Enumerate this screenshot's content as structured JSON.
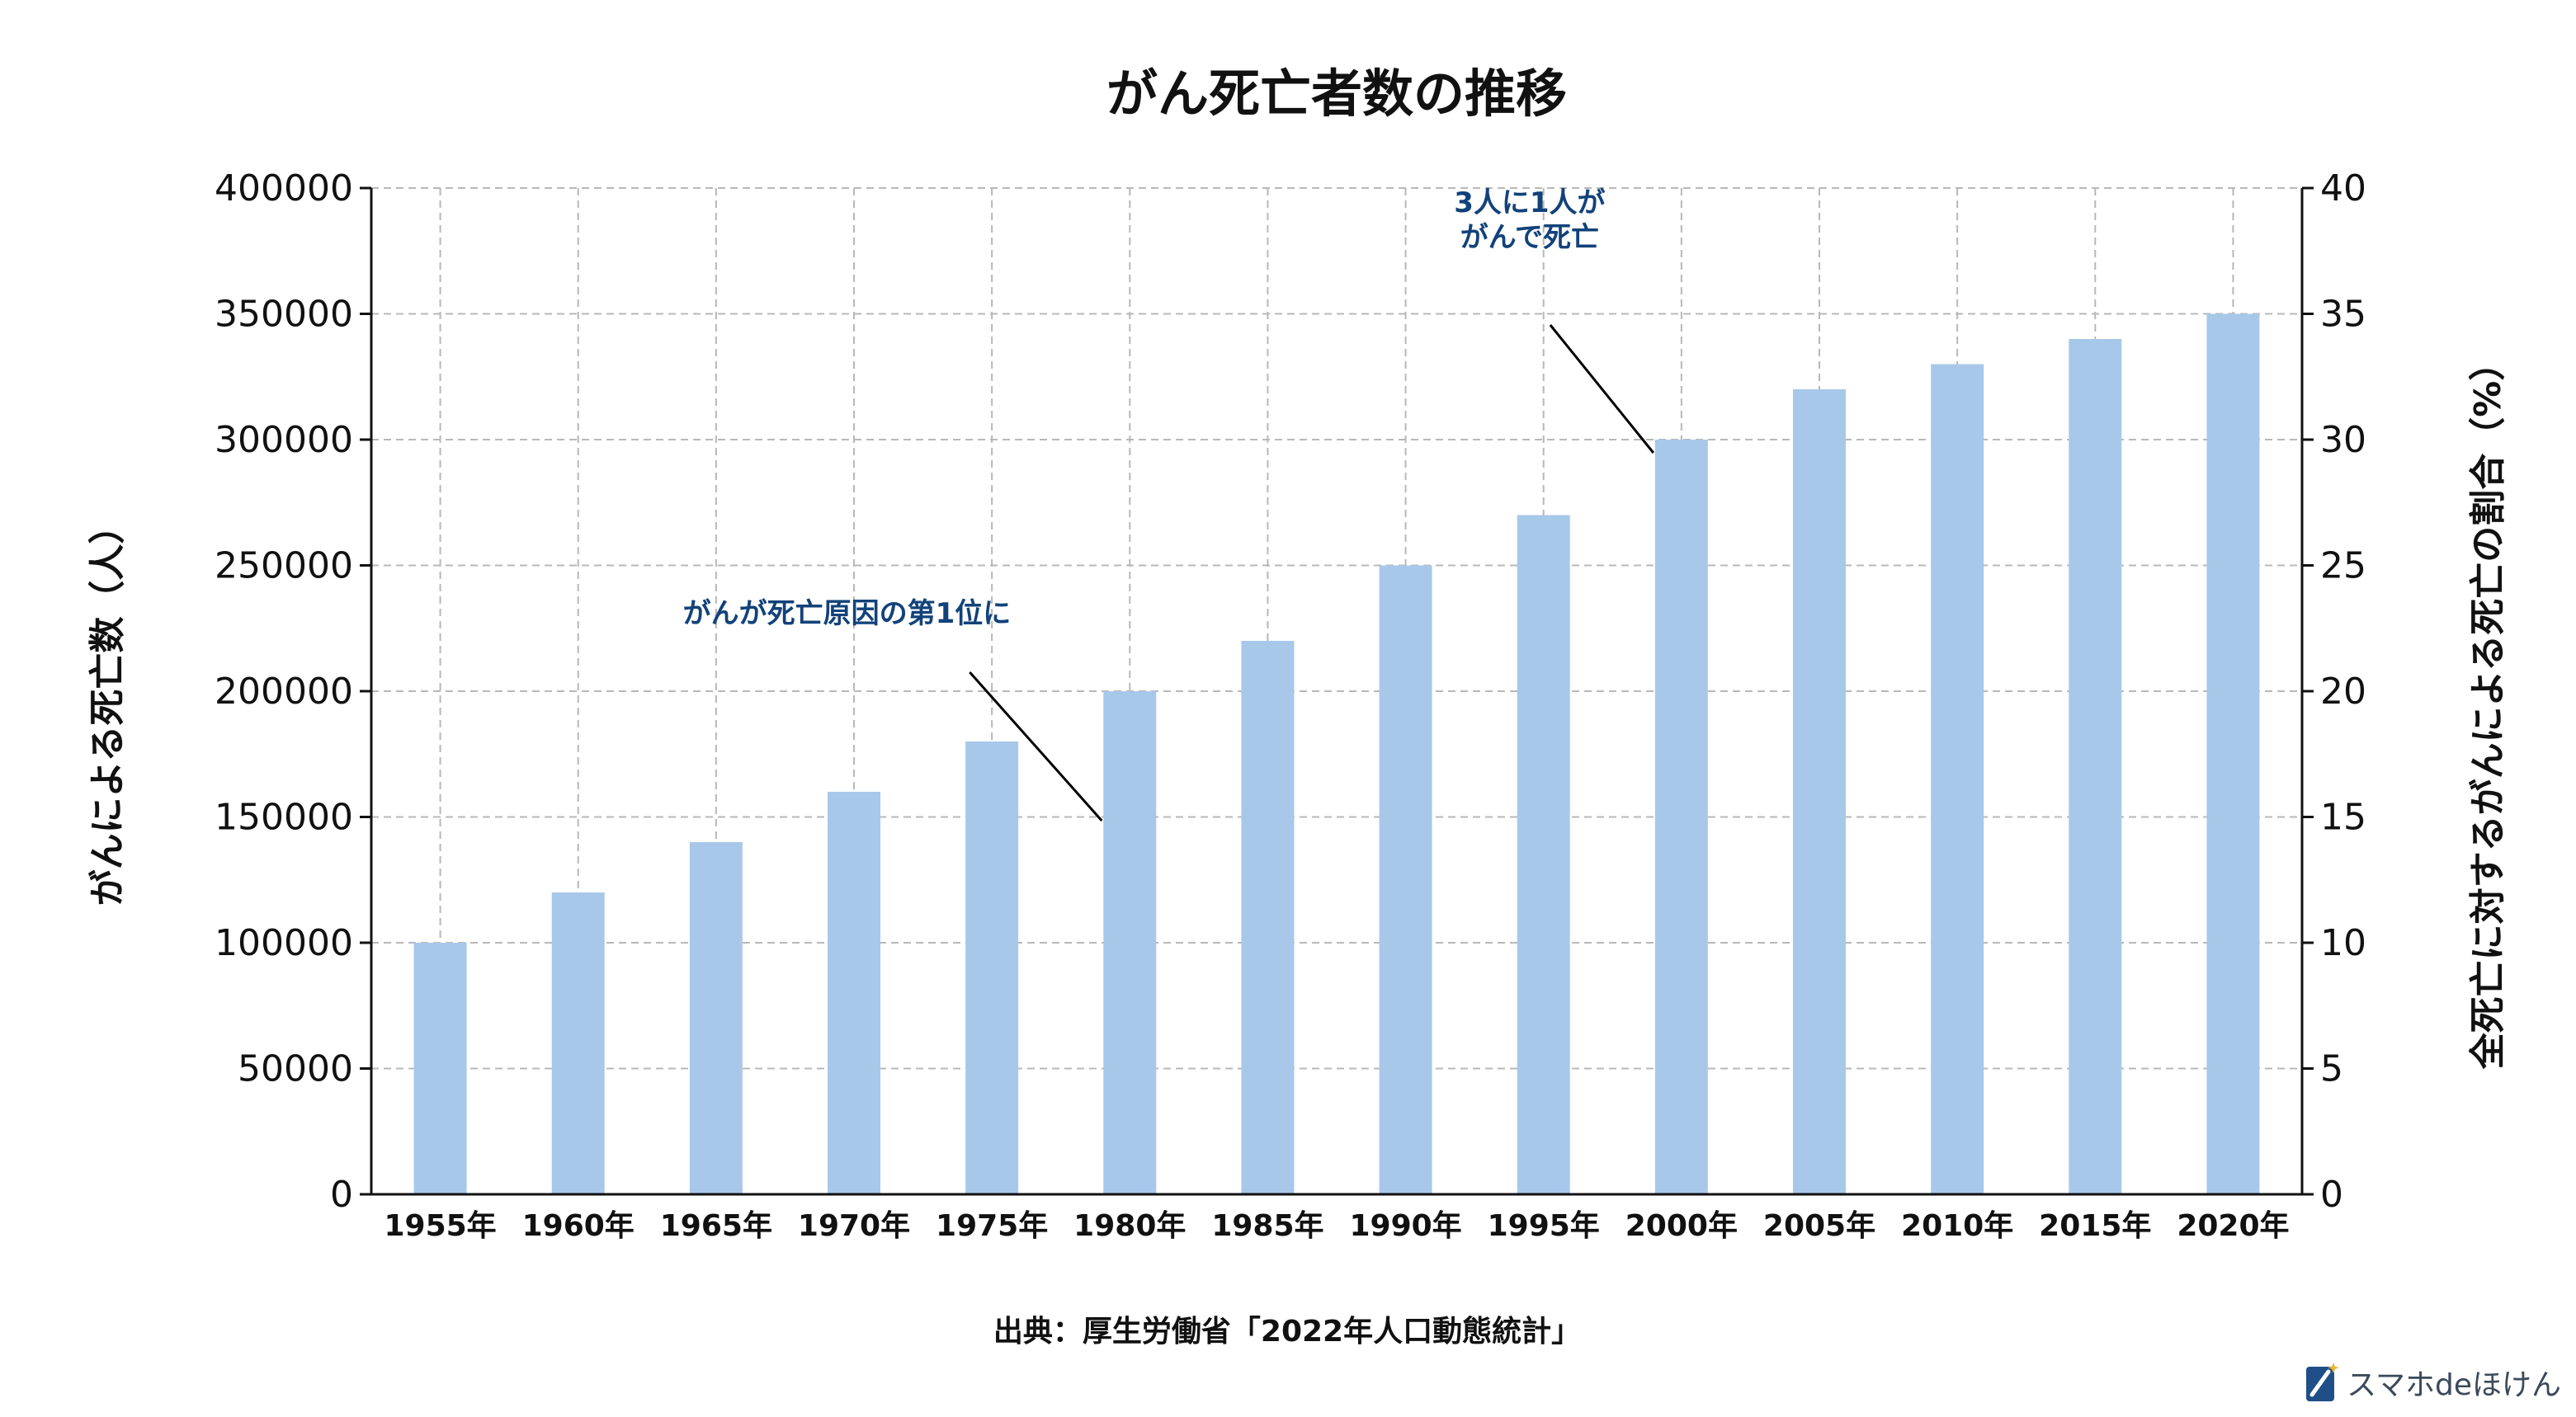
{
  "chart_data": {
    "type": "bar",
    "title": "がん死亡者数の推移",
    "ylabel": "がんによる死亡数（人）",
    "ylabel_right": "全死亡に対するがんによる死亡の割合（%）",
    "categories": [
      "1955年",
      "1960年",
      "1965年",
      "1970年",
      "1975年",
      "1980年",
      "1985年",
      "1990年",
      "1995年",
      "2000年",
      "2005年",
      "2010年",
      "2015年",
      "2020年"
    ],
    "series": [
      {
        "values": [
          100000,
          120000,
          140000,
          160000,
          180000,
          200000,
          220000,
          250000,
          270000,
          300000,
          320000,
          330000,
          340000,
          350000
        ]
      }
    ],
    "ylim": [
      0,
      400000
    ],
    "yticks": [
      0,
      50000,
      100000,
      150000,
      200000,
      250000,
      300000,
      350000,
      400000
    ],
    "ylim_right": [
      0,
      40
    ],
    "yticks_right": [
      0,
      5,
      10,
      15,
      20,
      25,
      30,
      35,
      40
    ],
    "grid": true,
    "bar_color": "#a8c8ea",
    "annotations": [
      {
        "lines": [
          "がんが死亡原因の第1位に"
        ],
        "category": "1980年",
        "value": 200000
      },
      {
        "lines": [
          "3人に1人が",
          "がんで死亡"
        ],
        "category": "2000年",
        "value": 300000
      }
    ],
    "source": "出典：厚生労働省「2022年人口動態統計」"
  },
  "brand": {
    "name": "スマホdeほけん",
    "icon": "brand-logo-icon",
    "color": "#1f4f86"
  }
}
